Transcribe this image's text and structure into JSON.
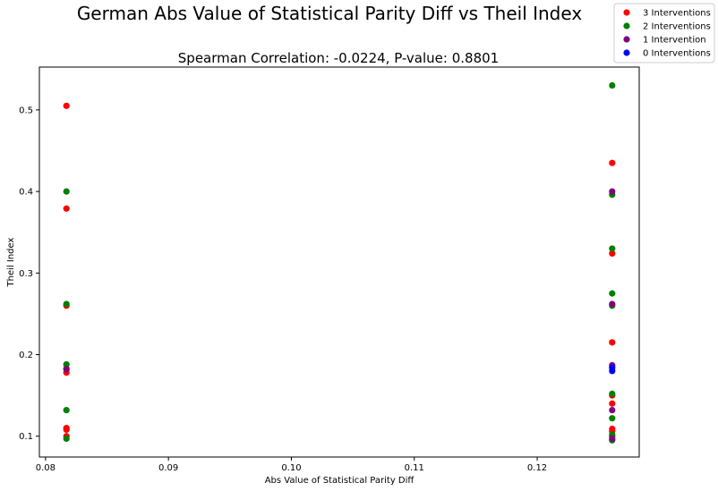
{
  "chart_data": {
    "type": "scatter",
    "title": "German Abs Value of Statistical Parity Diff vs Theil Index",
    "subtitle": "Spearman Correlation: -0.0224, P-value: 0.8801",
    "xlabel": "Abs Value of Statistical Parity Diff",
    "ylabel": "Theil Index",
    "xlim": [
      0.0795,
      0.1283
    ],
    "ylim": [
      0.0745,
      0.5525
    ],
    "xticks": [
      0.08,
      0.09,
      0.1,
      0.11,
      0.12
    ],
    "xtick_labels": [
      "0.08",
      "0.09",
      "0.10",
      "0.11",
      "0.12"
    ],
    "yticks": [
      0.1,
      0.2,
      0.3,
      0.4,
      0.5
    ],
    "ytick_labels": [
      "0.1",
      "0.2",
      "0.3",
      "0.4",
      "0.5"
    ],
    "grid": false,
    "legend_position": "top-right (outside axes)",
    "series": [
      {
        "name": "3 Interventions",
        "color": "#ff0000",
        "points": [
          [
            0.0817,
            0.505
          ],
          [
            0.0817,
            0.379
          ],
          [
            0.0817,
            0.26
          ],
          [
            0.0817,
            0.183
          ],
          [
            0.0817,
            0.178
          ],
          [
            0.0817,
            0.11
          ],
          [
            0.0817,
            0.108
          ],
          [
            0.0817,
            0.1
          ],
          [
            0.1261,
            0.435
          ],
          [
            0.1261,
            0.324
          ],
          [
            0.1261,
            0.215
          ],
          [
            0.1261,
            0.15
          ],
          [
            0.1261,
            0.14
          ],
          [
            0.1261,
            0.109
          ],
          [
            0.1261,
            0.106
          ],
          [
            0.1261,
            0.1
          ]
        ]
      },
      {
        "name": "2 Interventions",
        "color": "#008000",
        "points": [
          [
            0.0817,
            0.4
          ],
          [
            0.0817,
            0.262
          ],
          [
            0.0817,
            0.188
          ],
          [
            0.0817,
            0.132
          ],
          [
            0.0817,
            0.097
          ],
          [
            0.1261,
            0.53
          ],
          [
            0.1261,
            0.396
          ],
          [
            0.1261,
            0.33
          ],
          [
            0.1261,
            0.275
          ],
          [
            0.1261,
            0.26
          ],
          [
            0.1261,
            0.152
          ],
          [
            0.1261,
            0.122
          ],
          [
            0.1261,
            0.102
          ],
          [
            0.1261,
            0.095
          ]
        ]
      },
      {
        "name": "1 Intervention",
        "color": "#800080",
        "points": [
          [
            0.0817,
            0.182
          ],
          [
            0.1261,
            0.4
          ],
          [
            0.1261,
            0.262
          ],
          [
            0.1261,
            0.187
          ],
          [
            0.1261,
            0.132
          ],
          [
            0.1261,
            0.097
          ]
        ]
      },
      {
        "name": "0 Interventions",
        "color": "#0000ff",
        "points": [
          [
            0.1261,
            0.184
          ],
          [
            0.1261,
            0.18
          ]
        ]
      }
    ]
  }
}
